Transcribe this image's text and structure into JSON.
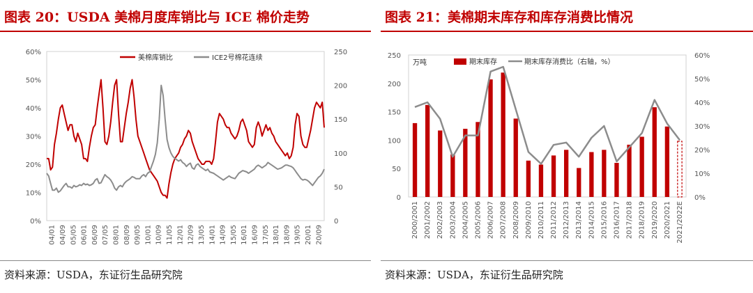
{
  "chart_data": [
    {
      "type": "line",
      "title": "图表 20：USDA 美棉月度库销比与 ICE 棉价走势",
      "source": "资料来源：USDA，东证衍生品研究院",
      "left_axis": {
        "ticks": [
          "0%",
          "10%",
          "20%",
          "30%",
          "40%",
          "50%",
          "60%"
        ],
        "ylim": [
          0,
          60
        ]
      },
      "right_axis": {
        "ticks": [
          "0",
          "50",
          "100",
          "150",
          "200",
          "250"
        ],
        "ylim": [
          0,
          250
        ]
      },
      "x_ticks": [
        "04/01",
        "04/09",
        "05/05",
        "06/01",
        "06/09",
        "07/05",
        "08/01",
        "08/09",
        "09/05",
        "10/01",
        "10/09",
        "11/05",
        "12/01",
        "12/09",
        "13/05",
        "14/01",
        "14/09",
        "15/05",
        "16/01",
        "16/09",
        "17/05",
        "18/01",
        "18/09",
        "19/05",
        "20/01",
        "20/09"
      ],
      "series": [
        {
          "name": "美棉库销比",
          "axis": "left",
          "color": "#c00000",
          "values": [
            22,
            22,
            18,
            19,
            27,
            31,
            36,
            40,
            41,
            38,
            35,
            32,
            34,
            34,
            30,
            28,
            31,
            29,
            27,
            22,
            22,
            21,
            26,
            30,
            33,
            34,
            40,
            45,
            50,
            40,
            28,
            27,
            30,
            35,
            42,
            48,
            50,
            38,
            28,
            28,
            33,
            38,
            42,
            47,
            50,
            44,
            36,
            30,
            28,
            26,
            24,
            22,
            20,
            18,
            17,
            16,
            15,
            14,
            12,
            10,
            9,
            9,
            8,
            13,
            17,
            20,
            22,
            23,
            24,
            26,
            27,
            29,
            30,
            32,
            31,
            28,
            26,
            24,
            22,
            21,
            20,
            20,
            21,
            21,
            21,
            20,
            22,
            28,
            35,
            38,
            37,
            36,
            34,
            33,
            33,
            31,
            30,
            29,
            30,
            32,
            35,
            36,
            34,
            32,
            28,
            27,
            26,
            27,
            33,
            35,
            33,
            30,
            32,
            34,
            32,
            33,
            31,
            30,
            28,
            27,
            26,
            25,
            24,
            23,
            24,
            22,
            23,
            26,
            34,
            38,
            37,
            30,
            27,
            26,
            26,
            29,
            32,
            36,
            40,
            42,
            41,
            40,
            42,
            33
          ]
        },
        {
          "name": "ICE2号棉花连续",
          "axis": "right",
          "color": "#8c8c8c",
          "values": [
            70,
            66,
            55,
            45,
            45,
            48,
            42,
            44,
            48,
            52,
            55,
            50,
            50,
            48,
            52,
            50,
            51,
            53,
            52,
            55,
            53,
            54,
            52,
            53,
            55,
            60,
            62,
            55,
            56,
            62,
            68,
            65,
            63,
            60,
            55,
            48,
            45,
            50,
            52,
            50,
            55,
            58,
            60,
            62,
            65,
            64,
            62,
            62,
            62,
            66,
            68,
            65,
            70,
            72,
            80,
            88,
            98,
            115,
            150,
            200,
            185,
            150,
            120,
            108,
            100,
            95,
            92,
            90,
            88,
            90,
            86,
            84,
            80,
            83,
            85,
            78,
            76,
            82,
            84,
            80,
            78,
            76,
            74,
            76,
            72,
            71,
            70,
            68,
            66,
            64,
            62,
            60,
            62,
            64,
            66,
            64,
            63,
            62,
            66,
            70,
            72,
            74,
            73,
            72,
            70,
            72,
            74,
            76,
            80,
            82,
            80,
            78,
            80,
            82,
            86,
            84,
            82,
            80,
            78,
            76,
            77,
            78,
            80,
            82,
            82,
            81,
            80,
            78,
            74,
            70,
            66,
            62,
            60,
            61,
            60,
            58,
            55,
            52,
            56,
            60,
            64,
            66,
            70,
            76
          ]
        }
      ]
    },
    {
      "type": "bar",
      "title": "图表 21：美棉期末库存和库存消费比情况",
      "source": "资料来源：USDA，东证衍生品研究院",
      "unit_label": "万吨",
      "left_axis": {
        "ticks": [
          "0",
          "50",
          "100",
          "150",
          "200",
          "250"
        ],
        "ylim": [
          0,
          250
        ]
      },
      "right_axis": {
        "ticks": [
          "0%",
          "10%",
          "20%",
          "30%",
          "40%",
          "50%",
          "60%"
        ],
        "ylim": [
          0,
          60
        ]
      },
      "categories": [
        "2000/2001",
        "2001/2002",
        "2002/2003",
        "2003/2004",
        "2004/2005",
        "2005/2006",
        "2006/2007",
        "2007/2008",
        "2008/2009",
        "2009/2010",
        "2010/2011",
        "2011/2012",
        "2012/2013",
        "2013/2014",
        "2014/2015",
        "2015/2016",
        "2016/2017",
        "2017/2018",
        "2018/2019",
        "2019/2020",
        "2020/2021",
        "2021/2022E"
      ],
      "series": [
        {
          "name": "期末库存",
          "type": "bar",
          "axis": "left",
          "color": "#c00000",
          "values": [
            130,
            162,
            117,
            75,
            120,
            132,
            207,
            219,
            138,
            64,
            57,
            73,
            83,
            51,
            79,
            83,
            60,
            92,
            106,
            158,
            124,
            98
          ]
        },
        {
          "name": "期末库存消费比（右轴，%）",
          "type": "line",
          "axis": "right",
          "color": "#8c8c8c",
          "values": [
            38,
            40,
            33,
            17,
            26,
            26,
            53,
            55,
            37,
            19,
            14,
            22,
            23,
            17,
            25,
            30,
            15,
            21,
            27,
            41,
            31,
            24
          ]
        }
      ],
      "estimate_category": "2021/2022E"
    }
  ]
}
